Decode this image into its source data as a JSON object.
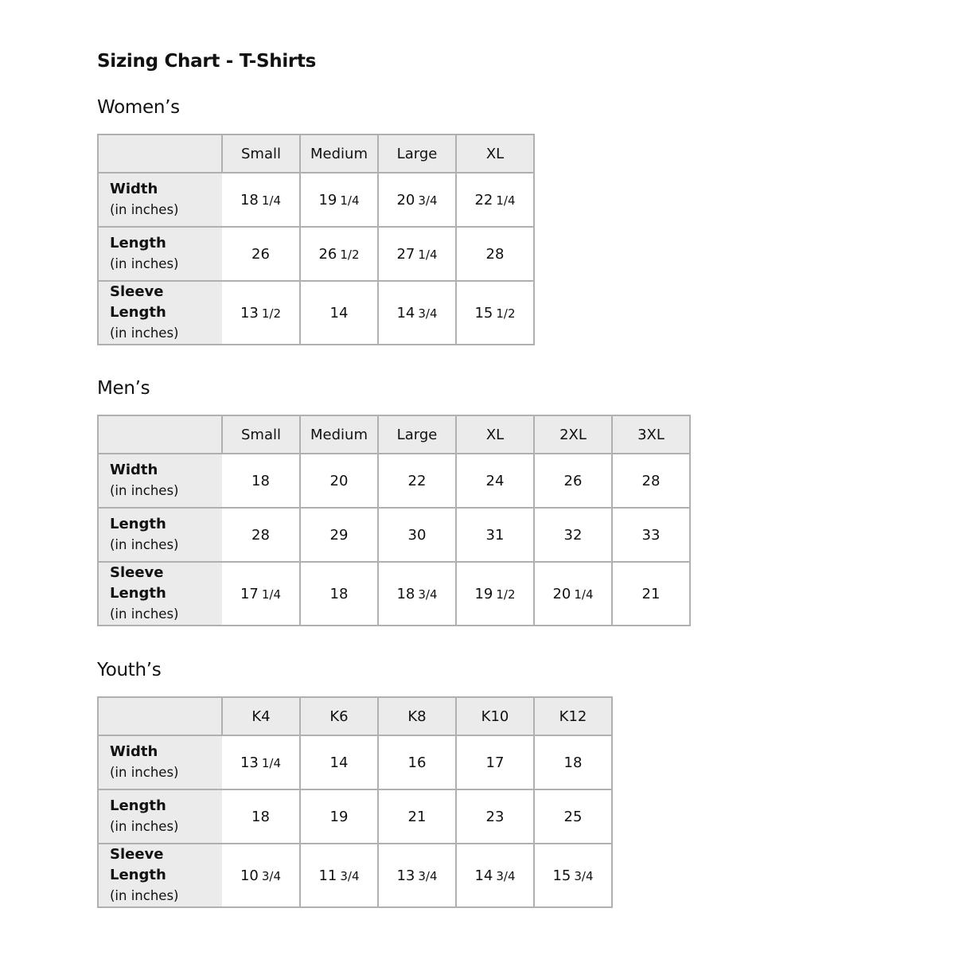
{
  "title": "Sizing Chart - T-Shirts",
  "row_unit": "(in inches)",
  "sections": [
    {
      "title": "Women’s",
      "sizes": [
        "Small",
        "Medium",
        "Large",
        "XL"
      ],
      "rows": [
        {
          "label": "Width",
          "values": [
            "18 1/4",
            "19 1/4",
            "20 3/4",
            "22 1/4"
          ]
        },
        {
          "label": "Length",
          "values": [
            "26",
            "26 1/2",
            "27 1/4",
            "28"
          ]
        },
        {
          "label": "Sleeve Length",
          "values": [
            "13 1/2",
            "14",
            "14 3/4",
            "15 1/2"
          ]
        }
      ]
    },
    {
      "title": "Men’s",
      "sizes": [
        "Small",
        "Medium",
        "Large",
        "XL",
        "2XL",
        "3XL"
      ],
      "rows": [
        {
          "label": "Width",
          "values": [
            "18",
            "20",
            "22",
            "24",
            "26",
            "28"
          ]
        },
        {
          "label": "Length",
          "values": [
            "28",
            "29",
            "30",
            "31",
            "32",
            "33"
          ]
        },
        {
          "label": "Sleeve Length",
          "values": [
            "17 1/4",
            "18",
            "18 3/4",
            "19 1/2",
            "20 1/4",
            "21"
          ]
        }
      ]
    },
    {
      "title": "Youth’s",
      "sizes": [
        "K4",
        "K6",
        "K8",
        "K10",
        "K12"
      ],
      "rows": [
        {
          "label": "Width",
          "values": [
            "13 1/4",
            "14",
            "16",
            "17",
            "18"
          ]
        },
        {
          "label": "Length",
          "values": [
            "18",
            "19",
            "21",
            "23",
            "25"
          ]
        },
        {
          "label": "Sleeve Length",
          "values": [
            "10 3/4",
            "11 3/4",
            "13 3/4",
            "14 3/4",
            "15 3/4"
          ]
        }
      ]
    }
  ]
}
